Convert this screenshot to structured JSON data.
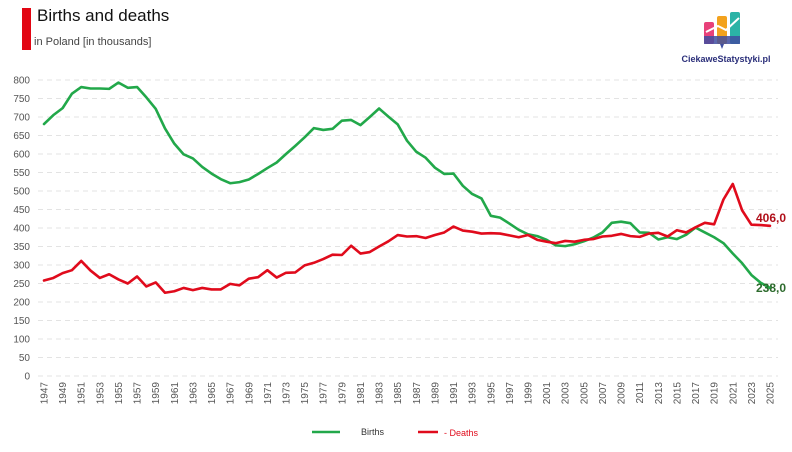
{
  "header": {
    "title": "Births and deaths",
    "subtitle": "in Poland [in thousands]",
    "brand": "CiekaweStatystyki.pl"
  },
  "colors": {
    "accent": "#e20613",
    "births": "#22a84a",
    "deaths": "#e00b1c",
    "births_label": "#2e6b2e",
    "deaths_label": "#b0101a",
    "grid": "#e3e3e3"
  },
  "chart_data": {
    "type": "line",
    "title": "Births and deaths",
    "subtitle": "in Poland [in thousands]",
    "xlabel": "",
    "ylabel": "",
    "ylim": [
      0,
      800
    ],
    "yticks": [
      "0",
      "50",
      "100",
      "150",
      "200",
      "250",
      "300",
      "350",
      "400",
      "450",
      "500",
      "550",
      "600",
      "650",
      "700",
      "750",
      "800"
    ],
    "xticks": [
      "1947",
      "1949",
      "1951",
      "1953",
      "1955",
      "1957",
      "1959",
      "1961",
      "1963",
      "1965",
      "1967",
      "1969",
      "1971",
      "1973",
      "1975",
      "1977",
      "1979",
      "1981",
      "1983",
      "1985",
      "1987",
      "1989",
      "1991",
      "1993",
      "1995",
      "1997",
      "1999",
      "2001",
      "2003",
      "2005",
      "2007",
      "2009",
      "2011",
      "2013",
      "2015",
      "2017",
      "2019",
      "2021",
      "2023",
      "2025"
    ],
    "grid": "horizontal dashed",
    "legend_position": "bottom-center",
    "x": [
      1947,
      1948,
      1949,
      1950,
      1951,
      1952,
      1953,
      1954,
      1955,
      1956,
      1957,
      1958,
      1959,
      1960,
      1961,
      1962,
      1963,
      1964,
      1965,
      1966,
      1967,
      1968,
      1969,
      1970,
      1971,
      1972,
      1973,
      1974,
      1975,
      1976,
      1977,
      1978,
      1979,
      1980,
      1981,
      1982,
      1983,
      1984,
      1985,
      1986,
      1987,
      1988,
      1989,
      1990,
      1991,
      1992,
      1993,
      1994,
      1995,
      1996,
      1997,
      1998,
      1999,
      2000,
      2001,
      2002,
      2003,
      2004,
      2005,
      2006,
      2007,
      2008,
      2009,
      2010,
      2011,
      2012,
      2013,
      2014,
      2015,
      2016,
      2017,
      2018,
      2019,
      2020,
      2021,
      2022,
      2023,
      2024,
      2025
    ],
    "series": [
      {
        "name": "Births",
        "values": [
          681,
          705,
          724,
          763,
          781,
          777,
          777,
          776,
          793,
          779,
          781,
          753,
          722,
          669,
          628,
          599,
          588,
          565,
          547,
          532,
          521,
          524,
          531,
          546,
          562,
          577,
          600,
          622,
          645,
          670,
          665,
          668,
          690,
          692,
          678,
          700,
          723,
          701,
          680,
          636,
          606,
          590,
          563,
          546,
          547,
          514,
          492,
          480,
          433,
          428,
          412,
          395,
          383,
          378,
          368,
          353,
          351,
          356,
          364,
          374,
          388,
          414,
          417,
          413,
          388,
          387,
          369,
          375,
          370,
          382,
          401,
          388,
          375,
          359,
          331,
          305,
          273,
          252,
          238
        ]
      },
      {
        "name": "Deaths",
        "values": [
          258,
          265,
          278,
          286,
          311,
          285,
          265,
          275,
          261,
          250,
          269,
          242,
          253,
          225,
          229,
          238,
          232,
          238,
          234,
          234,
          249,
          245,
          263,
          267,
          286,
          266,
          279,
          280,
          299,
          306,
          316,
          328,
          327,
          352,
          331,
          335,
          350,
          364,
          381,
          377,
          378,
          373,
          381,
          388,
          404,
          393,
          390,
          385,
          386,
          385,
          380,
          375,
          381,
          368,
          363,
          359,
          365,
          363,
          368,
          370,
          377,
          379,
          384,
          378,
          376,
          385,
          387,
          377,
          394,
          388,
          402,
          414,
          410,
          477,
          519,
          448,
          409,
          408,
          406
        ]
      }
    ],
    "annotations": [
      {
        "series": "Deaths",
        "x": 2025,
        "text": "406,0"
      },
      {
        "series": "Births",
        "x": 2025,
        "text": "238,0"
      }
    ]
  }
}
